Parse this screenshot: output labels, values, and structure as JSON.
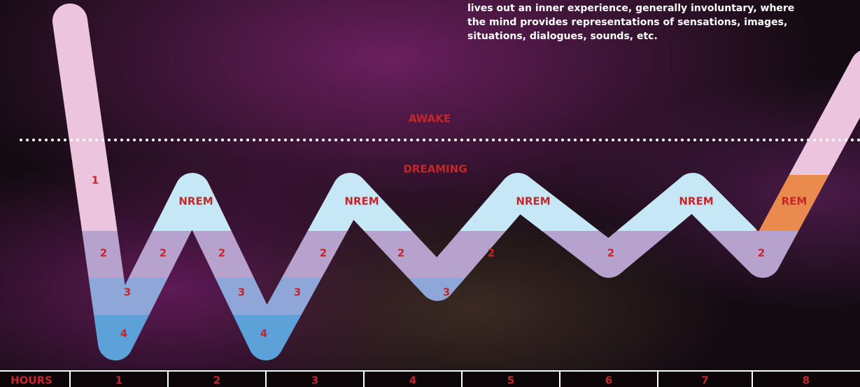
{
  "description": [
    "lives out an inner experience, generally involuntary, where",
    "the mind provides representations of sensations, images,",
    "situations, dialogues, sounds, etc."
  ],
  "awake_label": "AWAKE",
  "dreaming_label": "DREAMING",
  "stage_labels": [
    "1",
    "2",
    "3",
    "4",
    "2",
    "NREM",
    "2",
    "3",
    "4",
    "3",
    "2",
    "NREM",
    "2",
    "3",
    "2",
    "NREM",
    "2",
    "NREM",
    "2",
    "REM"
  ],
  "hours_axis": {
    "title": "HOURS",
    "hours": [
      1,
      2,
      3,
      4,
      5,
      6,
      7,
      8
    ]
  }
}
